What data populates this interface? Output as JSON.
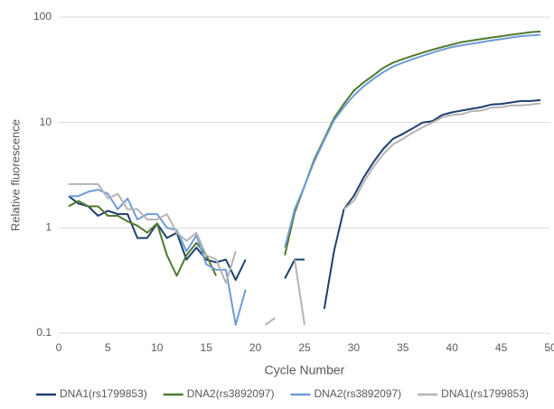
{
  "chart_data": {
    "type": "line",
    "x_label": "Cycle Number",
    "y_label": "Relative fluorescence",
    "log_y": true,
    "grid": true,
    "legend": "bottom",
    "x": [
      1,
      2,
      3,
      4,
      5,
      6,
      7,
      8,
      9,
      10,
      11,
      12,
      13,
      14,
      15,
      16,
      17,
      18,
      19,
      20,
      21,
      22,
      23,
      24,
      25,
      26,
      27,
      28,
      29,
      30,
      31,
      32,
      33,
      34,
      35,
      36,
      37,
      38,
      39,
      40,
      41,
      42,
      43,
      44,
      45,
      46,
      47,
      48,
      49
    ],
    "xlim": [
      0,
      50
    ],
    "xticks": [
      0,
      5,
      10,
      15,
      20,
      25,
      30,
      35,
      40,
      45,
      50
    ],
    "ylim": [
      0.1,
      100
    ],
    "yticks": [
      0.1,
      1,
      10,
      100
    ],
    "series": [
      {
        "name": "DNA1(rs1799853)",
        "color": "#1f3f6e",
        "values": [
          2.0,
          1.7,
          1.6,
          1.3,
          1.45,
          1.35,
          1.35,
          0.8,
          0.8,
          1.1,
          0.8,
          0.9,
          0.5,
          0.65,
          0.5,
          0.47,
          0.5,
          0.32,
          0.5,
          null,
          null,
          null,
          0.33,
          0.5,
          0.5,
          null,
          0.17,
          0.6,
          1.5,
          2.0,
          3.0,
          4.2,
          5.6,
          7.0,
          7.8,
          8.8,
          10,
          10.3,
          11.8,
          12.5,
          13,
          13.5,
          14,
          14.8,
          15,
          15.5,
          16,
          16,
          16.3
        ]
      },
      {
        "name": "DNA2(rs3892097)",
        "color": "#4e7a2e",
        "values": [
          1.6,
          1.8,
          1.6,
          1.6,
          1.3,
          1.3,
          1.15,
          1.05,
          0.9,
          1.1,
          0.55,
          0.35,
          0.55,
          0.72,
          0.55,
          0.35,
          null,
          null,
          null,
          null,
          null,
          null,
          0.55,
          1.4,
          2.5,
          4.5,
          7,
          11,
          15,
          20,
          24,
          28,
          33,
          37,
          40,
          43,
          46,
          49,
          52,
          55,
          58,
          60,
          62,
          64,
          66,
          68,
          70,
          72,
          73
        ]
      },
      {
        "name": "DNA2(rs3892097)",
        "color": "#6f9bd8",
        "values": [
          2.0,
          2.0,
          2.2,
          2.3,
          2.1,
          1.5,
          1.9,
          1.2,
          1.35,
          1.35,
          1.0,
          0.95,
          0.6,
          0.85,
          0.45,
          0.4,
          0.4,
          0.12,
          0.26,
          null,
          null,
          null,
          0.65,
          1.5,
          2.5,
          4.3,
          6.8,
          10.5,
          14,
          18,
          22,
          26,
          30,
          34,
          37,
          40,
          43,
          46,
          49,
          52,
          54,
          56,
          58,
          60,
          62,
          64,
          66,
          67,
          68
        ]
      },
      {
        "name": "DNA1(rs1799853)",
        "color": "#b4b4b4",
        "values": [
          2.6,
          2.6,
          2.6,
          2.6,
          1.9,
          2.1,
          1.5,
          1.5,
          1.2,
          1.2,
          1.35,
          0.9,
          0.75,
          0.9,
          0.55,
          0.5,
          0.3,
          0.6,
          null,
          null,
          0.12,
          0.14,
          null,
          0.5,
          0.12,
          null,
          null,
          null,
          1.5,
          1.8,
          2.7,
          3.8,
          5,
          6.2,
          7,
          8,
          9,
          10,
          11.2,
          11.8,
          12,
          12.8,
          13,
          13.8,
          14,
          14.5,
          14.5,
          14.8,
          15.2
        ]
      }
    ]
  }
}
